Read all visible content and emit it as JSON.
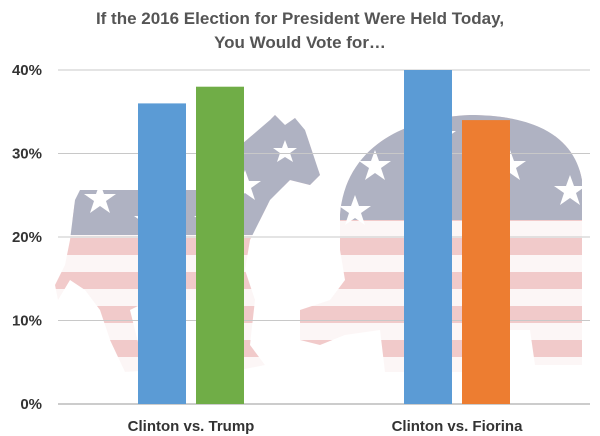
{
  "chart_data": {
    "type": "bar",
    "title_lines": [
      "If the 2016 Election for President Were Held Today,",
      "You Would Vote for…"
    ],
    "xlabel": "",
    "ylabel": "",
    "ylim": [
      0,
      40
    ],
    "yticks": [
      0,
      10,
      20,
      30,
      40
    ],
    "ytick_labels": [
      "0%",
      "10%",
      "20%",
      "30%",
      "40%"
    ],
    "grid": true,
    "legend": "none",
    "categories": [
      "Clinton vs. Trump",
      "Clinton vs. Fiorina"
    ],
    "groups": [
      {
        "category": "Clinton vs. Trump",
        "bars": [
          {
            "value": 36,
            "color": "#5b9bd5"
          },
          {
            "value": 38,
            "color": "#70ad47"
          }
        ]
      },
      {
        "category": "Clinton vs. Fiorina",
        "bars": [
          {
            "value": 40,
            "color": "#5b9bd5"
          },
          {
            "value": 34,
            "color": "#ed7d31"
          }
        ]
      }
    ]
  },
  "background": {
    "left_icon": "democrat-donkey-flag-icon",
    "right_icon": "republican-elephant-flag-icon",
    "flag_blue": "#8d92a8",
    "flag_red": "#e6a3a3"
  }
}
